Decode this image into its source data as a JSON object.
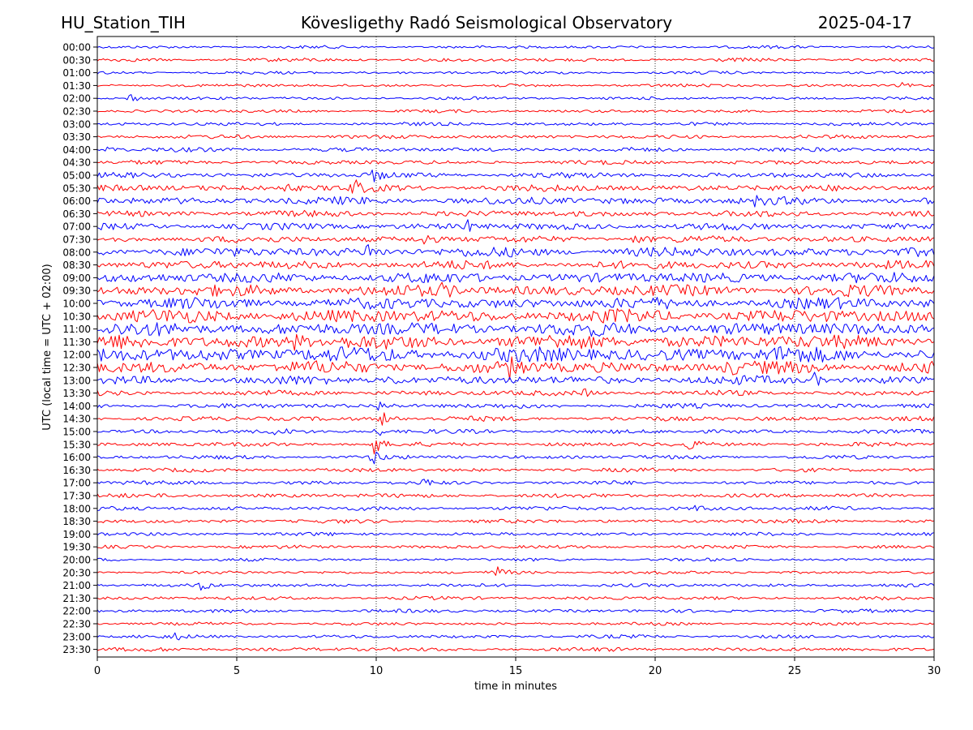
{
  "chart_data": {
    "type": "line",
    "station": "HU_Station_TIH",
    "title": "Kövesligethy Radó Seismological Observatory",
    "date": "2025-04-17",
    "xlabel": "time in minutes",
    "ylabel": "UTC (local time = UTC + 02:00)",
    "xlim": [
      0,
      30
    ],
    "x_ticks": [
      0,
      5,
      10,
      15,
      20,
      25,
      30
    ],
    "vertical_grid": true,
    "colors": [
      "#0000ff",
      "#ff0000"
    ],
    "traces": [
      {
        "label": "00:00",
        "amp": 1.5,
        "events": []
      },
      {
        "label": "00:30",
        "amp": 1.8,
        "events": []
      },
      {
        "label": "01:00",
        "amp": 1.5,
        "events": []
      },
      {
        "label": "01:30",
        "amp": 1.6,
        "events": [
          {
            "t": 28.8,
            "a": 3
          }
        ]
      },
      {
        "label": "02:00",
        "amp": 1.6,
        "events": [
          {
            "t": 1.15,
            "a": 7
          }
        ]
      },
      {
        "label": "02:30",
        "amp": 1.6,
        "events": []
      },
      {
        "label": "03:00",
        "amp": 1.8,
        "events": []
      },
      {
        "label": "03:30",
        "amp": 2.0,
        "events": []
      },
      {
        "label": "04:00",
        "amp": 2.2,
        "events": [
          {
            "t": 0.4,
            "a": 4
          }
        ]
      },
      {
        "label": "04:30",
        "amp": 2.2,
        "events": []
      },
      {
        "label": "05:00",
        "amp": 2.8,
        "events": [
          {
            "t": 9.9,
            "a": 8
          }
        ]
      },
      {
        "label": "05:30",
        "amp": 3.5,
        "events": [
          {
            "t": 9.2,
            "a": 9
          },
          {
            "t": 6.8,
            "a": 5
          }
        ]
      },
      {
        "label": "06:00",
        "amp": 4.0,
        "events": [
          {
            "t": 23.5,
            "a": 6
          }
        ]
      },
      {
        "label": "06:30",
        "amp": 3.2,
        "events": []
      },
      {
        "label": "07:00",
        "amp": 3.5,
        "events": [
          {
            "t": 13.2,
            "a": 8
          }
        ]
      },
      {
        "label": "07:30",
        "amp": 3.5,
        "events": [
          {
            "t": 11.7,
            "a": 9
          },
          {
            "t": 19.3,
            "a": 6
          }
        ]
      },
      {
        "label": "08:00",
        "amp": 5.0,
        "events": [
          {
            "t": 9.7,
            "a": 9
          }
        ]
      },
      {
        "label": "08:30",
        "amp": 4.5,
        "events": []
      },
      {
        "label": "09:00",
        "amp": 5.5,
        "events": []
      },
      {
        "label": "09:30",
        "amp": 6.0,
        "events": [
          {
            "t": 12.4,
            "a": 8
          }
        ]
      },
      {
        "label": "10:00",
        "amp": 6.0,
        "events": []
      },
      {
        "label": "10:30",
        "amp": 7.0,
        "events": []
      },
      {
        "label": "11:00",
        "amp": 7.0,
        "events": []
      },
      {
        "label": "11:30",
        "amp": 7.5,
        "events": [
          {
            "t": 7.0,
            "a": 9
          }
        ]
      },
      {
        "label": "12:00",
        "amp": 8.0,
        "events": [
          {
            "t": 24.5,
            "a": 9
          }
        ]
      },
      {
        "label": "12:30",
        "amp": 6.5,
        "events": [
          {
            "t": 14.8,
            "a": 9
          },
          {
            "t": 22.6,
            "a": 8
          }
        ]
      },
      {
        "label": "13:00",
        "amp": 4.5,
        "events": [
          {
            "t": 10.5,
            "a": 8
          },
          {
            "t": 25.7,
            "a": 8
          }
        ]
      },
      {
        "label": "13:30",
        "amp": 2.8,
        "events": [
          {
            "t": 17.5,
            "a": 5
          }
        ]
      },
      {
        "label": "14:00",
        "amp": 2.5,
        "events": [
          {
            "t": 10.1,
            "a": 6
          }
        ]
      },
      {
        "label": "14:30",
        "amp": 2.5,
        "events": [
          {
            "t": 10.2,
            "a": 11
          }
        ]
      },
      {
        "label": "15:00",
        "amp": 2.2,
        "events": [
          {
            "t": 6.4,
            "a": 7
          },
          {
            "t": 9.95,
            "a": 9
          }
        ]
      },
      {
        "label": "15:30",
        "amp": 2.2,
        "events": [
          {
            "t": 9.9,
            "a": 14
          },
          {
            "t": 21.2,
            "a": 7
          }
        ]
      },
      {
        "label": "16:00",
        "amp": 2.0,
        "events": [
          {
            "t": 9.9,
            "a": 9
          }
        ]
      },
      {
        "label": "16:30",
        "amp": 2.0,
        "events": []
      },
      {
        "label": "17:00",
        "amp": 2.0,
        "events": [
          {
            "t": 11.7,
            "a": 6
          }
        ]
      },
      {
        "label": "17:30",
        "amp": 2.2,
        "events": []
      },
      {
        "label": "18:00",
        "amp": 2.2,
        "events": [
          {
            "t": 21.5,
            "a": 4
          }
        ]
      },
      {
        "label": "18:30",
        "amp": 2.0,
        "events": []
      },
      {
        "label": "19:00",
        "amp": 1.8,
        "events": []
      },
      {
        "label": "19:30",
        "amp": 1.8,
        "events": []
      },
      {
        "label": "20:00",
        "amp": 1.6,
        "events": []
      },
      {
        "label": "20:30",
        "amp": 1.6,
        "events": [
          {
            "t": 14.35,
            "a": 7
          }
        ]
      },
      {
        "label": "21:00",
        "amp": 1.8,
        "events": [
          {
            "t": 3.7,
            "a": 7
          }
        ]
      },
      {
        "label": "21:30",
        "amp": 1.8,
        "events": []
      },
      {
        "label": "22:00",
        "amp": 1.8,
        "events": []
      },
      {
        "label": "22:30",
        "amp": 1.6,
        "events": []
      },
      {
        "label": "23:00",
        "amp": 1.8,
        "events": [
          {
            "t": 2.7,
            "a": 5
          }
        ]
      },
      {
        "label": "23:30",
        "amp": 2.0,
        "events": []
      }
    ]
  }
}
